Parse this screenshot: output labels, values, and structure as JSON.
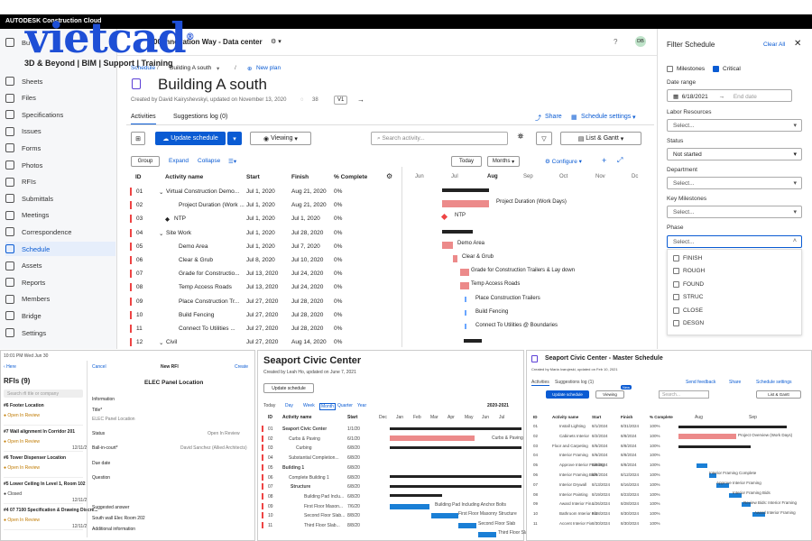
{
  "topbar": {
    "brand": "AUTODESK Construction Cloud"
  },
  "watermark": {
    "name": "vietcad",
    "reg": "®",
    "tagline": "3D & Beyond | BIM | Support | Training"
  },
  "header": {
    "project": "00 Innovation Way - Data center",
    "avatar": "DB"
  },
  "sidebar": {
    "top_partial": "Bu",
    "items": [
      "Sheets",
      "Files",
      "Specifications",
      "Issues",
      "Forms",
      "Photos",
      "RFIs",
      "Submittals",
      "Meetings",
      "Correspondence",
      "Schedule",
      "Assets",
      "Reports",
      "Members",
      "Bridge",
      "Settings"
    ]
  },
  "breadcrumb": {
    "schedule": "Schedule",
    "current": "Building A south",
    "new_plan": "New plan"
  },
  "page": {
    "title": "Building A south",
    "updated": "Created by David Kairyshevskyi, updated on November 13, 2020",
    "comments": "38",
    "version": "V1"
  },
  "tabs": {
    "activities": "Activities",
    "suggestions": "Suggestions log (0)"
  },
  "actions": {
    "share": "Share",
    "settings": "Schedule settings"
  },
  "toolbar": {
    "update": "Update schedule",
    "viewing": "Viewing",
    "search_placeholder": "Search activity...",
    "view": "List & Gantt"
  },
  "grid_tools": {
    "group": "Group",
    "expand": "Expand",
    "collapse": "Collapse",
    "today": "Today",
    "months": "Months",
    "configure": "Configure"
  },
  "columns": {
    "id": "ID",
    "name": "Activity name",
    "start": "Start",
    "finish": "Finish",
    "pct": "% Complete"
  },
  "months": [
    "Jun",
    "Jul",
    "Aug",
    "Sep",
    "Oct",
    "Nov",
    "Dc"
  ],
  "rows": [
    {
      "id": "01",
      "name": "Virtual Construction Demo...",
      "start": "Jul 1, 2020",
      "finish": "Aug 21, 2020",
      "pct": "0%"
    },
    {
      "id": "02",
      "name": "Project Duration (Work ...",
      "start": "Jul 1, 2020",
      "finish": "Aug 21, 2020",
      "pct": "0%"
    },
    {
      "id": "03",
      "name": "NTP",
      "start": "Jul 1, 2020",
      "finish": "Jul 1, 2020",
      "pct": "0%"
    },
    {
      "id": "04",
      "name": "Site Work",
      "start": "Jul 1, 2020",
      "finish": "Jul 28, 2020",
      "pct": "0%"
    },
    {
      "id": "05",
      "name": "Demo Area",
      "start": "Jul 1, 2020",
      "finish": "Jul 7, 2020",
      "pct": "0%"
    },
    {
      "id": "06",
      "name": "Clear & Grub",
      "start": "Jul 8, 2020",
      "finish": "Jul 10, 2020",
      "pct": "0%"
    },
    {
      "id": "07",
      "name": "Grade for Constructio...",
      "start": "Jul 13, 2020",
      "finish": "Jul 24, 2020",
      "pct": "0%"
    },
    {
      "id": "08",
      "name": "Temp Access Roads",
      "start": "Jul 13, 2020",
      "finish": "Jul 24, 2020",
      "pct": "0%"
    },
    {
      "id": "09",
      "name": "Place Construction Tr...",
      "start": "Jul 27, 2020",
      "finish": "Jul 28, 2020",
      "pct": "0%"
    },
    {
      "id": "10",
      "name": "Build Fencing",
      "start": "Jul 27, 2020",
      "finish": "Jul 28, 2020",
      "pct": "0%"
    },
    {
      "id": "11",
      "name": "Connect To Utilities ...",
      "start": "Jul 27, 2020",
      "finish": "Jul 28, 2020",
      "pct": "0%"
    },
    {
      "id": "12",
      "name": "Civil",
      "start": "Jul 27, 2020",
      "finish": "Aug 14, 2020",
      "pct": "0%"
    }
  ],
  "gantt_labels": [
    "Project Duration (Work Days)",
    "NTP",
    "Demo Area",
    "Clear & Grub",
    "Grade for Construction Trailers & Lay down",
    "Temp Access Roads",
    "Place Construction Trailers",
    "Build Fencing",
    "Connect To Utilities @ Boundaries"
  ],
  "filter": {
    "title": "Filter Schedule",
    "clear": "Clear All",
    "milestones": "Milestones",
    "critical": "Critical",
    "date_range": "Date range",
    "date_from": "6/18/2021",
    "date_to": "End date",
    "labor": "Labor Resources",
    "select": "Select...",
    "status": "Status",
    "status_value": "Not started",
    "department": "Department",
    "key_milestones": "Key Milestones",
    "phase": "Phase",
    "phase_options": [
      "FINISH",
      "ROUGH",
      "FOUND",
      "STRUC",
      "CLOSE",
      "DESGN"
    ]
  },
  "panel1": {
    "time": "10:01 PM  Wed Jun 30",
    "back": "Here",
    "title": "RFIs (9)",
    "search": "Search rfi ttle or company",
    "cancel": "Cancel",
    "new_rfi": "New RFI",
    "create": "Create",
    "rfi_name": "ELEC Panel Location",
    "list": [
      {
        "t": "#6 Footer Location",
        "s": "Open In Review"
      },
      {
        "t": "#7 Wall alignment In Corridor 201",
        "s": "Open In Review",
        "d": "12/11/2"
      },
      {
        "t": "#6 Tower Dispenser Location",
        "s": "Open In Review"
      },
      {
        "t": "#5 Lower Ceiling In Level 1, Room 102",
        "s": "Closed",
        "d": "12/11/2"
      },
      {
        "t": "#4 07 7100 Specification & Drawing Discre...",
        "s": "Open In Review",
        "d": "12/11/2"
      }
    ],
    "fields": [
      "Information",
      "Title*",
      "ELEC Panel Location",
      "Status",
      "Open In Review",
      "Ball-in-court*",
      "David Sanchez (Allied Architects)",
      "Due date",
      "Question",
      "Suggested answer",
      "South wall Elec Room 202",
      "Additional information"
    ]
  },
  "panel2": {
    "title": "Seaport Civic Center",
    "updated": "Created by Leah Ho, updated on June 7, 2021",
    "update": "Update schedule",
    "views": [
      "Today",
      "Day",
      "Week",
      "Month",
      "Quarter",
      "Year"
    ],
    "year": "2020-2021",
    "months": [
      "Dec",
      "Jan",
      "Feb",
      "Mar",
      "Apr",
      "May",
      "Jun",
      "Jul"
    ],
    "rows": [
      {
        "id": "01",
        "name": "Seaport Civic Center",
        "start": "1/1/20"
      },
      {
        "id": "02",
        "name": "Curbs & Paving",
        "start": "6/1/20"
      },
      {
        "id": "03",
        "name": "Curbing",
        "start": "6/8/20"
      },
      {
        "id": "04",
        "name": "Substantial Completion...",
        "start": "6/8/20"
      },
      {
        "id": "05",
        "name": "Building 1",
        "start": "6/8/20"
      },
      {
        "id": "06",
        "name": "Complete Building 1",
        "start": "6/8/20"
      },
      {
        "id": "07",
        "name": "Structure",
        "start": "6/8/20"
      },
      {
        "id": "08",
        "name": "Building Pad Inclu...",
        "start": "6/8/20"
      },
      {
        "id": "09",
        "name": "First Floor Mason...",
        "start": "7/6/20"
      },
      {
        "id": "10",
        "name": "Second Floor Slab...",
        "start": "8/8/20"
      },
      {
        "id": "11",
        "name": "Third Floor Slab...",
        "start": "8/8/20"
      }
    ],
    "labels": [
      "Curbs & Paving",
      "Building Pad Including Anchor Bolts",
      "First Floor Masonry Structure",
      "Second Floor Slab",
      "Third Floor Slab"
    ]
  },
  "panel3": {
    "title": "Seaport Civic Center - Master Schedule",
    "updated": "Created by Maria Ivarujeski, updated on Feb 10, 2021",
    "tabs": [
      "Activities",
      "Suggestions log (1)"
    ],
    "update": "Update schedule",
    "viewing": "Viewing",
    "new_badge": "New",
    "send": "Send feedback",
    "share": "Share",
    "settings": "Schedule settings",
    "view": "List & Gantt",
    "search": "Search...",
    "cols": [
      "ID",
      "Activity name",
      "Start",
      "Finish",
      "% Complete"
    ],
    "months": [
      "Aug",
      "Sep"
    ],
    "rows": [
      {
        "id": "01",
        "name": "Install Lighting",
        "start": "8/1/2024",
        "finish": "8/31/2024",
        "pct": "100%"
      },
      {
        "id": "02",
        "name": "Cabinets Interior",
        "start": "8/2/2024",
        "finish": "8/8/2024",
        "pct": "100%"
      },
      {
        "id": "03",
        "name": "Floor and Carpeting",
        "start": "8/5/2024",
        "finish": "8/8/2024",
        "pct": "100%"
      },
      {
        "id": "04",
        "name": "Interior Framing",
        "start": "8/6/2024",
        "finish": "8/8/2024",
        "pct": "100%"
      },
      {
        "id": "05",
        "name": "Approve Interior Framing",
        "start": "8/8/2024",
        "finish": "8/8/2024",
        "pct": "100%"
      },
      {
        "id": "06",
        "name": "Interior Framing Bids",
        "start": "8/9/2024",
        "finish": "8/12/2024",
        "pct": "100%"
      },
      {
        "id": "07",
        "name": "Interior Drywall",
        "start": "8/13/2024",
        "finish": "8/16/2024",
        "pct": "100%"
      },
      {
        "id": "08",
        "name": "Interior Painting",
        "start": "8/19/2024",
        "finish": "8/23/2024",
        "pct": "100%"
      },
      {
        "id": "09",
        "name": "Award Interior Fin...",
        "start": "8/26/2024",
        "finish": "8/28/2024",
        "pct": "100%"
      },
      {
        "id": "10",
        "name": "Bathroom Interior Fix",
        "start": "8/28/2024",
        "finish": "8/30/2024",
        "pct": "100%"
      },
      {
        "id": "11",
        "name": "Accent Interior Fix",
        "start": "8/30/2024",
        "finish": "8/30/2024",
        "pct": "100%"
      }
    ],
    "labels": [
      "Project Overview (Work Days)",
      "Interior Framing Complete",
      "Approve Interior Framing",
      "Interior Framing Bids",
      "Review Bids: Interior Framing",
      "Award Interior Framing"
    ]
  }
}
